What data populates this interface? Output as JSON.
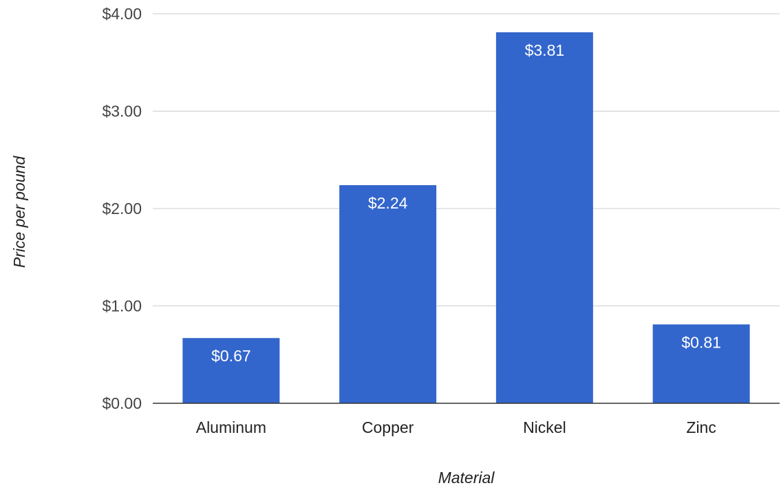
{
  "chart_data": {
    "type": "bar",
    "categories": [
      "Aluminum",
      "Copper",
      "Nickel",
      "Zinc"
    ],
    "values": [
      0.67,
      2.24,
      3.81,
      0.81
    ],
    "data_labels": [
      "$0.67",
      "$2.24",
      "$3.81",
      "$0.81"
    ],
    "xlabel": "Material",
    "ylabel": "Price per pound",
    "ylim": [
      0,
      4
    ],
    "yticks": [
      0,
      1,
      2,
      3,
      4
    ],
    "ytick_labels": [
      "$0.00",
      "$1.00",
      "$2.00",
      "$3.00",
      "$4.00"
    ],
    "grid": true,
    "legend": "none",
    "colors": {
      "bar": "#3366cc",
      "grid": "#cccccc",
      "baseline": "#333333"
    }
  }
}
